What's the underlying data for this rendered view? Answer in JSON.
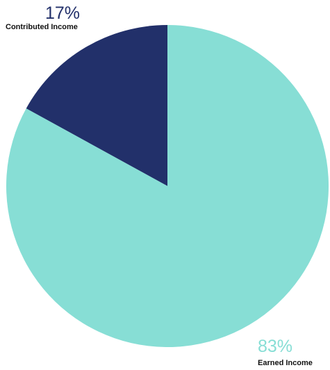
{
  "chart_data": {
    "type": "pie",
    "slices": [
      {
        "label": "Contributed Income",
        "value": 17,
        "display": "17%",
        "color": "#22306a"
      },
      {
        "label": "Earned Income",
        "value": 83,
        "display": "83%",
        "color": "#87ded5"
      }
    ],
    "legend": "none",
    "grid": false
  }
}
